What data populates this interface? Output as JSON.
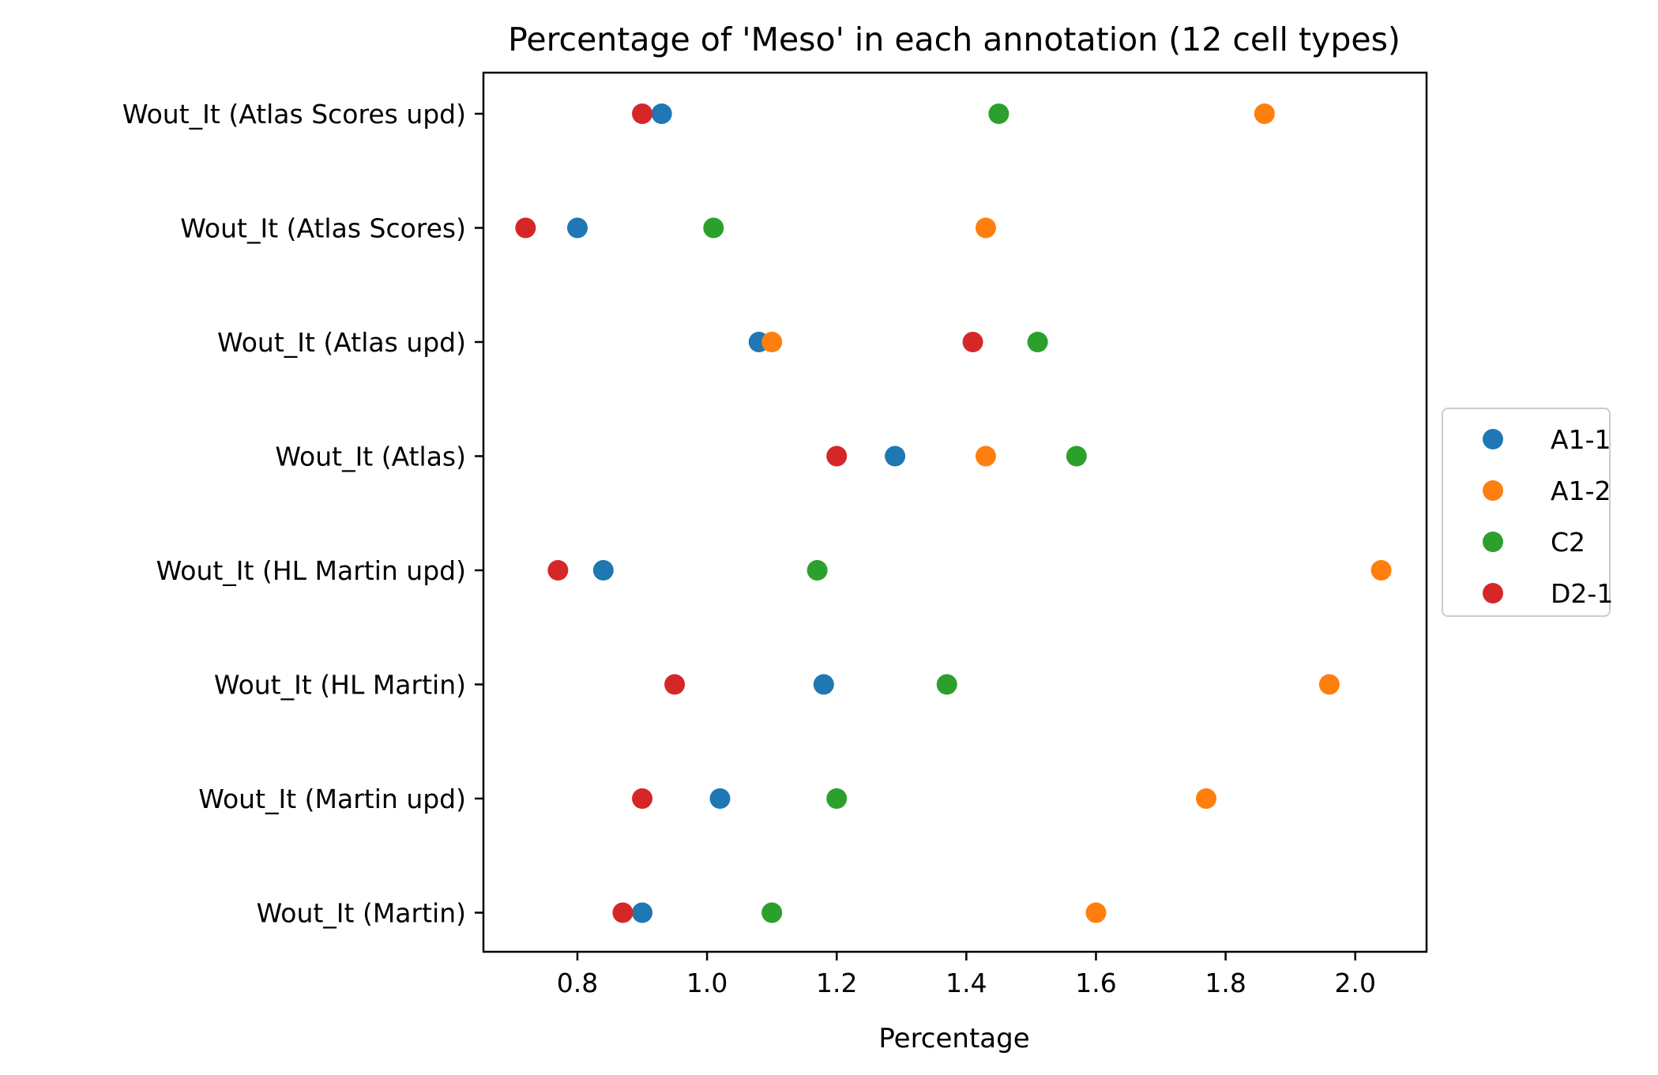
{
  "chart_data": {
    "type": "scatter",
    "title": "Percentage of 'Meso' in each annotation (12 cell types)",
    "xlabel": "Percentage",
    "ylabel": "",
    "xlim": [
      0.655,
      2.11
    ],
    "xticks": [
      0.8,
      1.0,
      1.2,
      1.4,
      1.6,
      1.8,
      2.0
    ],
    "xtick_labels": [
      "0.8",
      "1.0",
      "1.2",
      "1.4",
      "1.6",
      "1.8",
      "2.0"
    ],
    "categories": [
      "Wout_It (Atlas Scores upd)",
      "Wout_It (Atlas Scores)",
      "Wout_It (Atlas upd)",
      "Wout_It (Atlas)",
      "Wout_It (HL Martin upd)",
      "Wout_It (HL Martin)",
      "Wout_It (Martin upd)",
      "Wout_It (Martin)"
    ],
    "series": [
      {
        "name": "A1-1",
        "color": "#1f77b4",
        "values": [
          0.93,
          0.8,
          1.08,
          1.29,
          0.84,
          1.18,
          1.02,
          0.9
        ]
      },
      {
        "name": "A1-2",
        "color": "#ff7f0e",
        "values": [
          1.86,
          1.43,
          1.1,
          1.43,
          2.04,
          1.96,
          1.77,
          1.6
        ]
      },
      {
        "name": "C2",
        "color": "#2ca02c",
        "values": [
          1.45,
          1.01,
          1.51,
          1.57,
          1.17,
          1.37,
          1.2,
          1.1
        ]
      },
      {
        "name": "D2-1",
        "color": "#d62728",
        "values": [
          0.9,
          0.72,
          1.41,
          1.2,
          0.77,
          0.95,
          0.9,
          0.87
        ]
      }
    ],
    "grid": false,
    "legend_position": "center-right, outside plot"
  }
}
